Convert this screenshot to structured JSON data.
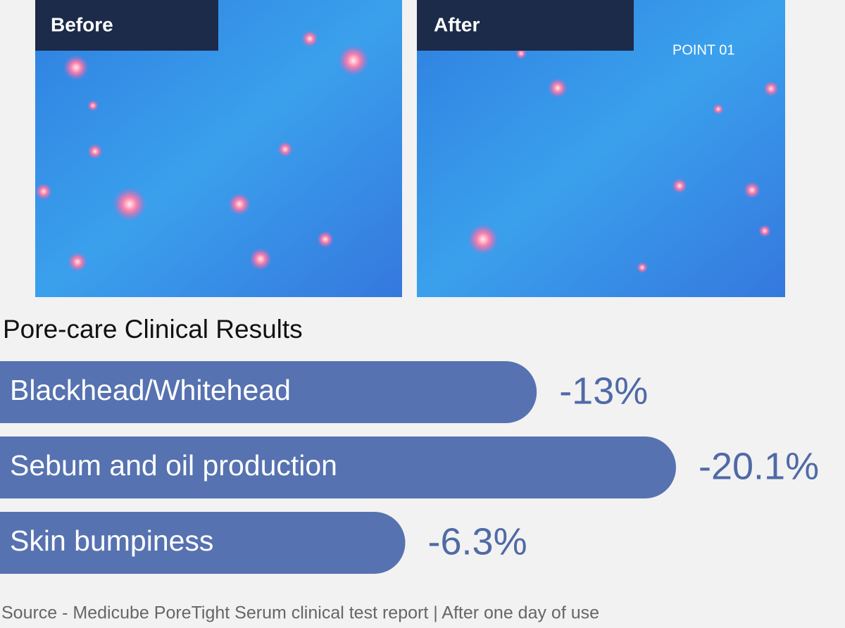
{
  "images": [
    {
      "label": "Before"
    },
    {
      "label": "After",
      "annotation": "POINT 01"
    }
  ],
  "chart_data": {
    "type": "bar",
    "orientation": "horizontal",
    "title": "Pore-care Clinical Results",
    "categories": [
      "Blackhead/Whitehead",
      "Sebum and oil production",
      "Skin bumpiness"
    ],
    "values": [
      -13,
      -20.1,
      -6.3
    ],
    "value_labels": [
      "-13%",
      "-20.1%",
      "-6.3%"
    ],
    "color": "#5672b0",
    "source": "Source - Medicube PoreTight Serum clinical test report | After one day of use"
  }
}
